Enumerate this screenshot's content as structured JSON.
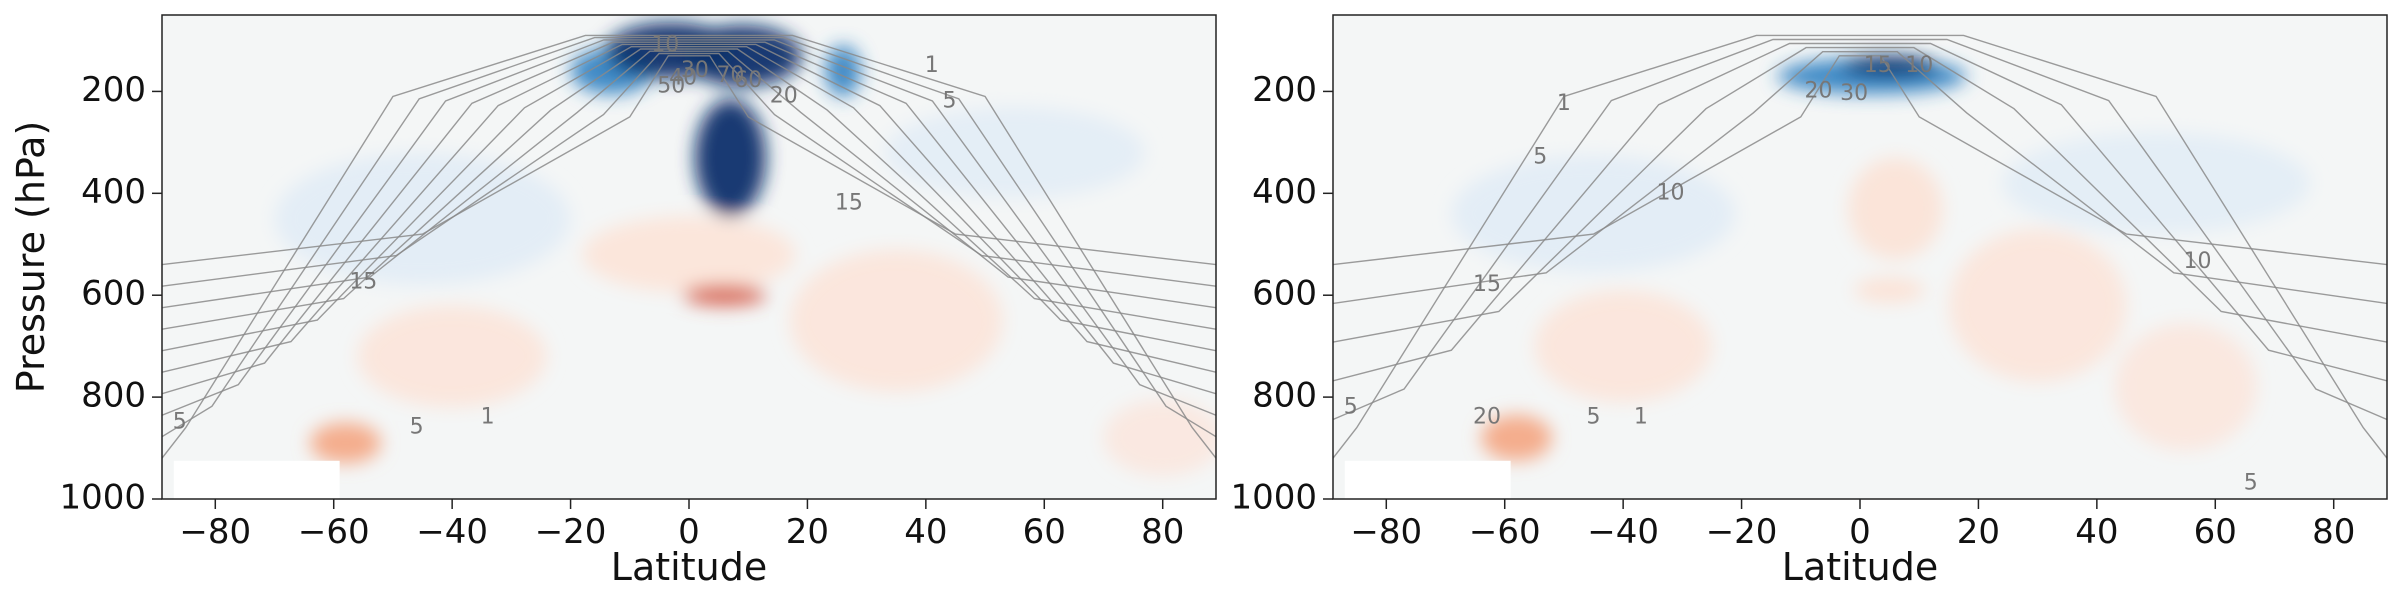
{
  "figure": {
    "ylabel": "Pressure (hPa)",
    "colors": {
      "neg_strong": "#08306b",
      "neg_mid": "#2f7fc1",
      "neg_light": "#dbe9f6",
      "pos_light": "#fde0d2",
      "pos_mid": "#f4a582",
      "pos_strong": "#d6604d",
      "neutral": "#f4f6f6",
      "contour": "#8a8a8a",
      "contour_label": "#777777"
    }
  },
  "chart_data": [
    {
      "type": "heatmap",
      "panel": "left",
      "xlabel": "Latitude",
      "ylabel": "Pressure (hPa)",
      "xlim": [
        -89,
        89
      ],
      "ylim": [
        1000,
        50
      ],
      "y_inverted": true,
      "xticks": [
        -80,
        -60,
        -40,
        -20,
        0,
        20,
        40,
        60,
        80
      ],
      "xtick_labels": [
        "−80",
        "−60",
        "−40",
        "−20",
        "0",
        "20",
        "40",
        "60",
        "80"
      ],
      "yticks": [
        200,
        400,
        600,
        800,
        1000
      ],
      "ytick_labels": [
        "200",
        "400",
        "600",
        "800",
        "1000"
      ],
      "fill_features": [
        {
          "sign": "negative",
          "lat": -3,
          "p": 120,
          "w": 11,
          "h": 110,
          "intensity": 1.0
        },
        {
          "sign": "negative",
          "lat": 9,
          "p": 130,
          "w": 10,
          "h": 120,
          "intensity": 1.0
        },
        {
          "sign": "negative",
          "lat": 7,
          "p": 330,
          "w": 6,
          "h": 230,
          "intensity": 0.75
        },
        {
          "sign": "negative",
          "lat": -13,
          "p": 160,
          "w": 7,
          "h": 90,
          "intensity": 0.55
        },
        {
          "sign": "negative",
          "lat": 26,
          "p": 160,
          "w": 3,
          "h": 100,
          "intensity": 0.45
        },
        {
          "sign": "negative",
          "lat": -45,
          "p": 450,
          "w": 25,
          "h": 260,
          "intensity": 0.22
        },
        {
          "sign": "negative",
          "lat": 55,
          "p": 320,
          "w": 22,
          "h": 180,
          "intensity": 0.18
        },
        {
          "sign": "positive",
          "lat": 6,
          "p": 600,
          "w": 7,
          "h": 40,
          "intensity": 0.85
        },
        {
          "sign": "positive",
          "lat": 0,
          "p": 520,
          "w": 18,
          "h": 150,
          "intensity": 0.3
        },
        {
          "sign": "positive",
          "lat": -58,
          "p": 890,
          "w": 6,
          "h": 80,
          "intensity": 0.55
        },
        {
          "sign": "positive",
          "lat": -40,
          "p": 720,
          "w": 16,
          "h": 200,
          "intensity": 0.25
        },
        {
          "sign": "positive",
          "lat": 35,
          "p": 650,
          "w": 18,
          "h": 280,
          "intensity": 0.25
        },
        {
          "sign": "positive",
          "lat": 80,
          "p": 880,
          "w": 10,
          "h": 150,
          "intensity": 0.15
        }
      ],
      "contour_levels": [
        1,
        5,
        10,
        15,
        20,
        30,
        40,
        50,
        60,
        70
      ],
      "contour_labels": [
        {
          "text": "10",
          "lat": -4,
          "p": 110
        },
        {
          "text": "50",
          "lat": -3,
          "p": 190
        },
        {
          "text": "40",
          "lat": -1,
          "p": 175
        },
        {
          "text": "30",
          "lat": 1,
          "p": 160
        },
        {
          "text": "70",
          "lat": 7,
          "p": 170
        },
        {
          "text": "60",
          "lat": 10,
          "p": 180
        },
        {
          "text": "20",
          "lat": 16,
          "p": 210
        },
        {
          "text": "1",
          "lat": 41,
          "p": 150
        },
        {
          "text": "5",
          "lat": 44,
          "p": 220
        },
        {
          "text": "15",
          "lat": 27,
          "p": 420
        },
        {
          "text": "15",
          "lat": -55,
          "p": 575
        },
        {
          "text": "5",
          "lat": -46,
          "p": 860
        },
        {
          "text": "1",
          "lat": -34,
          "p": 840
        },
        {
          "text": "5",
          "lat": -86,
          "p": 850
        }
      ],
      "masked_region": {
        "lat_min": -87,
        "lat_max": -59,
        "p_min": 925,
        "p_max": 1000
      }
    },
    {
      "type": "heatmap",
      "panel": "right",
      "xlabel": "Latitude",
      "ylabel": "",
      "xlim": [
        -89,
        89
      ],
      "ylim": [
        1000,
        50
      ],
      "y_inverted": true,
      "xticks": [
        -80,
        -60,
        -40,
        -20,
        0,
        20,
        40,
        60,
        80
      ],
      "xtick_labels": [
        "−80",
        "−60",
        "−40",
        "−20",
        "0",
        "20",
        "40",
        "60",
        "80"
      ],
      "yticks": [
        200,
        400,
        600,
        800,
        1000
      ],
      "ytick_labels": [
        "200",
        "400",
        "600",
        "800",
        "1000"
      ],
      "fill_features": [
        {
          "sign": "negative",
          "lat": 5,
          "p": 150,
          "w": 8,
          "h": 40,
          "intensity": 0.95
        },
        {
          "sign": "negative",
          "lat": 2,
          "p": 170,
          "w": 16,
          "h": 70,
          "intensity": 0.45
        },
        {
          "sign": "negative",
          "lat": -45,
          "p": 440,
          "w": 24,
          "h": 230,
          "intensity": 0.22
        },
        {
          "sign": "negative",
          "lat": 50,
          "p": 380,
          "w": 26,
          "h": 200,
          "intensity": 0.2
        },
        {
          "sign": "positive",
          "lat": 6,
          "p": 430,
          "w": 8,
          "h": 200,
          "intensity": 0.35
        },
        {
          "sign": "positive",
          "lat": 5,
          "p": 590,
          "w": 6,
          "h": 50,
          "intensity": 0.4
        },
        {
          "sign": "positive",
          "lat": -58,
          "p": 880,
          "w": 6,
          "h": 90,
          "intensity": 0.55
        },
        {
          "sign": "positive",
          "lat": -40,
          "p": 700,
          "w": 15,
          "h": 220,
          "intensity": 0.25
        },
        {
          "sign": "positive",
          "lat": 30,
          "p": 620,
          "w": 15,
          "h": 300,
          "intensity": 0.25
        },
        {
          "sign": "positive",
          "lat": 55,
          "p": 780,
          "w": 12,
          "h": 250,
          "intensity": 0.18
        }
      ],
      "contour_levels": [
        1,
        5,
        10,
        15,
        20,
        30
      ],
      "contour_labels": [
        {
          "text": "1",
          "lat": -50,
          "p": 225
        },
        {
          "text": "5",
          "lat": -54,
          "p": 330
        },
        {
          "text": "20",
          "lat": -7,
          "p": 200
        },
        {
          "text": "30",
          "lat": -1,
          "p": 205
        },
        {
          "text": "15",
          "lat": 3,
          "p": 150
        },
        {
          "text": "10",
          "lat": 10,
          "p": 150
        },
        {
          "text": "10",
          "lat": -32,
          "p": 400
        },
        {
          "text": "10",
          "lat": 57,
          "p": 535
        },
        {
          "text": "15",
          "lat": -63,
          "p": 580
        },
        {
          "text": "20",
          "lat": -63,
          "p": 840
        },
        {
          "text": "5",
          "lat": -45,
          "p": 840
        },
        {
          "text": "1",
          "lat": -37,
          "p": 840
        },
        {
          "text": "5",
          "lat": -86,
          "p": 820
        },
        {
          "text": "5",
          "lat": 66,
          "p": 970
        }
      ],
      "masked_region": {
        "lat_min": -87,
        "lat_max": -59,
        "p_min": 925,
        "p_max": 1000
      }
    }
  ]
}
